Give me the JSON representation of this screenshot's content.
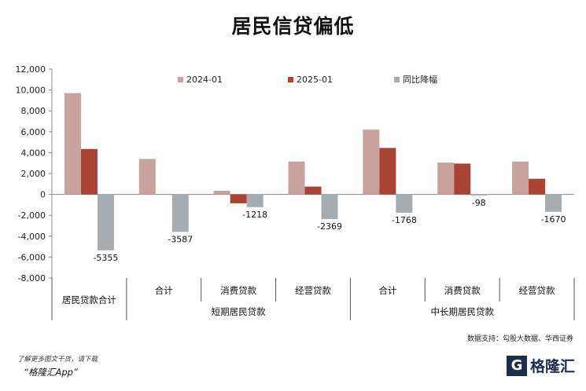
{
  "page": {
    "title": "居民信贷偏低",
    "source": "数据支持：勾股大数据、华西证券",
    "footer_line1": "了解更多图文干货，请下载",
    "footer_line2": "“格隆汇App”",
    "brand_mark": "G",
    "brand_name": "格隆汇"
  },
  "chart_data": {
    "type": "bar",
    "title": "居民信贷偏低",
    "ylim": [
      -8000,
      12000
    ],
    "yticks": [
      12000,
      10000,
      8000,
      6000,
      4000,
      2000,
      0,
      -2000,
      -4000,
      -6000,
      -8000
    ],
    "ytick_labels": [
      "12,000",
      "10,000",
      "8,000",
      "6,000",
      "4,000",
      "2,000",
      "0",
      "-2,000",
      "-4,000",
      "-6,000",
      "-8,000"
    ],
    "legend_position": "top",
    "categories": [
      "居民贷款合计",
      "合计",
      "消费贷款",
      "经营贷款",
      "合计",
      "消费贷款",
      "经营贷款"
    ],
    "groups": [
      {
        "label": "",
        "span": [
          0,
          0
        ]
      },
      {
        "label": "短期居民贷款",
        "span": [
          1,
          3
        ]
      },
      {
        "label": "中长期居民贷款",
        "span": [
          4,
          6
        ]
      }
    ],
    "series": [
      {
        "name": "2024-01",
        "color": "#c9a29e",
        "values": [
          9700,
          3400,
          350,
          3150,
          6200,
          3050,
          3150
        ]
      },
      {
        "name": "2025-01",
        "color": "#a84336",
        "values": [
          4350,
          null,
          -850,
          750,
          4450,
          2950,
          1500
        ]
      },
      {
        "name": "同比降幅",
        "color": "#a7acb0",
        "values": [
          -5355,
          -3587,
          -1218,
          -2369,
          -1768,
          -98,
          -1670
        ]
      }
    ],
    "data_labels": [
      "-5355",
      "-3587",
      "-1218",
      "-2369",
      "-1768",
      "-98",
      "-1670"
    ]
  }
}
